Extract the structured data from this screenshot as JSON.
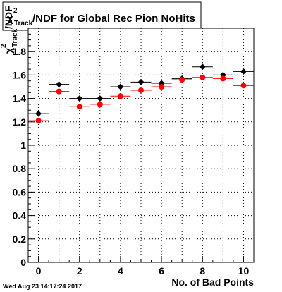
{
  "title": {
    "chi": "χ",
    "sup": "2",
    "sub": "Track",
    "rest": "/NDF for Global Rec Pion NoHits"
  },
  "ylabel": {
    "chi": "χ",
    "sup": "2",
    "sub": "Track",
    "rest": "/NDF"
  },
  "xlabel": "No. of Bad Points",
  "datestamp": "Wed Aug 23 14:17:24 2017",
  "colors": {
    "series_black": "#000000",
    "series_red": "#ff0000",
    "grid": "#000000",
    "background": "#ffffff"
  },
  "chart_data": {
    "type": "scatter",
    "title": "χ²_Track/NDF for Global Rec Pion NoHits",
    "xlabel": "No. of Bad Points",
    "ylabel": "χ²_Track/NDF",
    "xlim": [
      -0.5,
      10.5
    ],
    "ylim": [
      0,
      2.0
    ],
    "xticks": [
      0,
      2,
      4,
      6,
      8,
      10
    ],
    "yticks": [
      0,
      0.2,
      0.4,
      0.6,
      0.8,
      1,
      1.2,
      1.4,
      1.6,
      1.8
    ],
    "x_error_half_width": 0.5,
    "grid": true,
    "series": [
      {
        "color": "#000000",
        "marker": "diamond",
        "x": [
          0,
          1,
          2,
          3,
          4,
          5,
          6,
          7,
          8,
          9,
          10
        ],
        "y": [
          1.27,
          1.52,
          1.4,
          1.4,
          1.5,
          1.54,
          1.53,
          1.57,
          1.67,
          1.6,
          1.63
        ]
      },
      {
        "color": "#ff0000",
        "marker": "circle",
        "x": [
          0,
          1,
          2,
          3,
          4,
          5,
          6,
          7,
          8,
          9,
          10
        ],
        "y": [
          1.21,
          1.46,
          1.33,
          1.35,
          1.42,
          1.47,
          1.5,
          1.56,
          1.58,
          1.57,
          1.51
        ]
      }
    ]
  }
}
